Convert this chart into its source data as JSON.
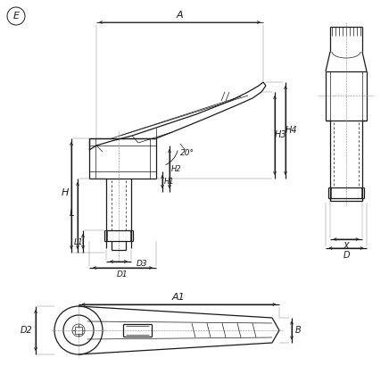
{
  "bg_color": "#ffffff",
  "line_color": "#1a1a1a",
  "figsize": [
    4.36,
    4.38
  ],
  "dpi": 100,
  "E_label": "E",
  "dim_labels": [
    "A",
    "H",
    "L",
    "L1",
    "D1",
    "D3",
    "H1",
    "H2",
    "H3",
    "H4",
    "20°",
    "A1",
    "D2",
    "B",
    "X",
    "D"
  ]
}
